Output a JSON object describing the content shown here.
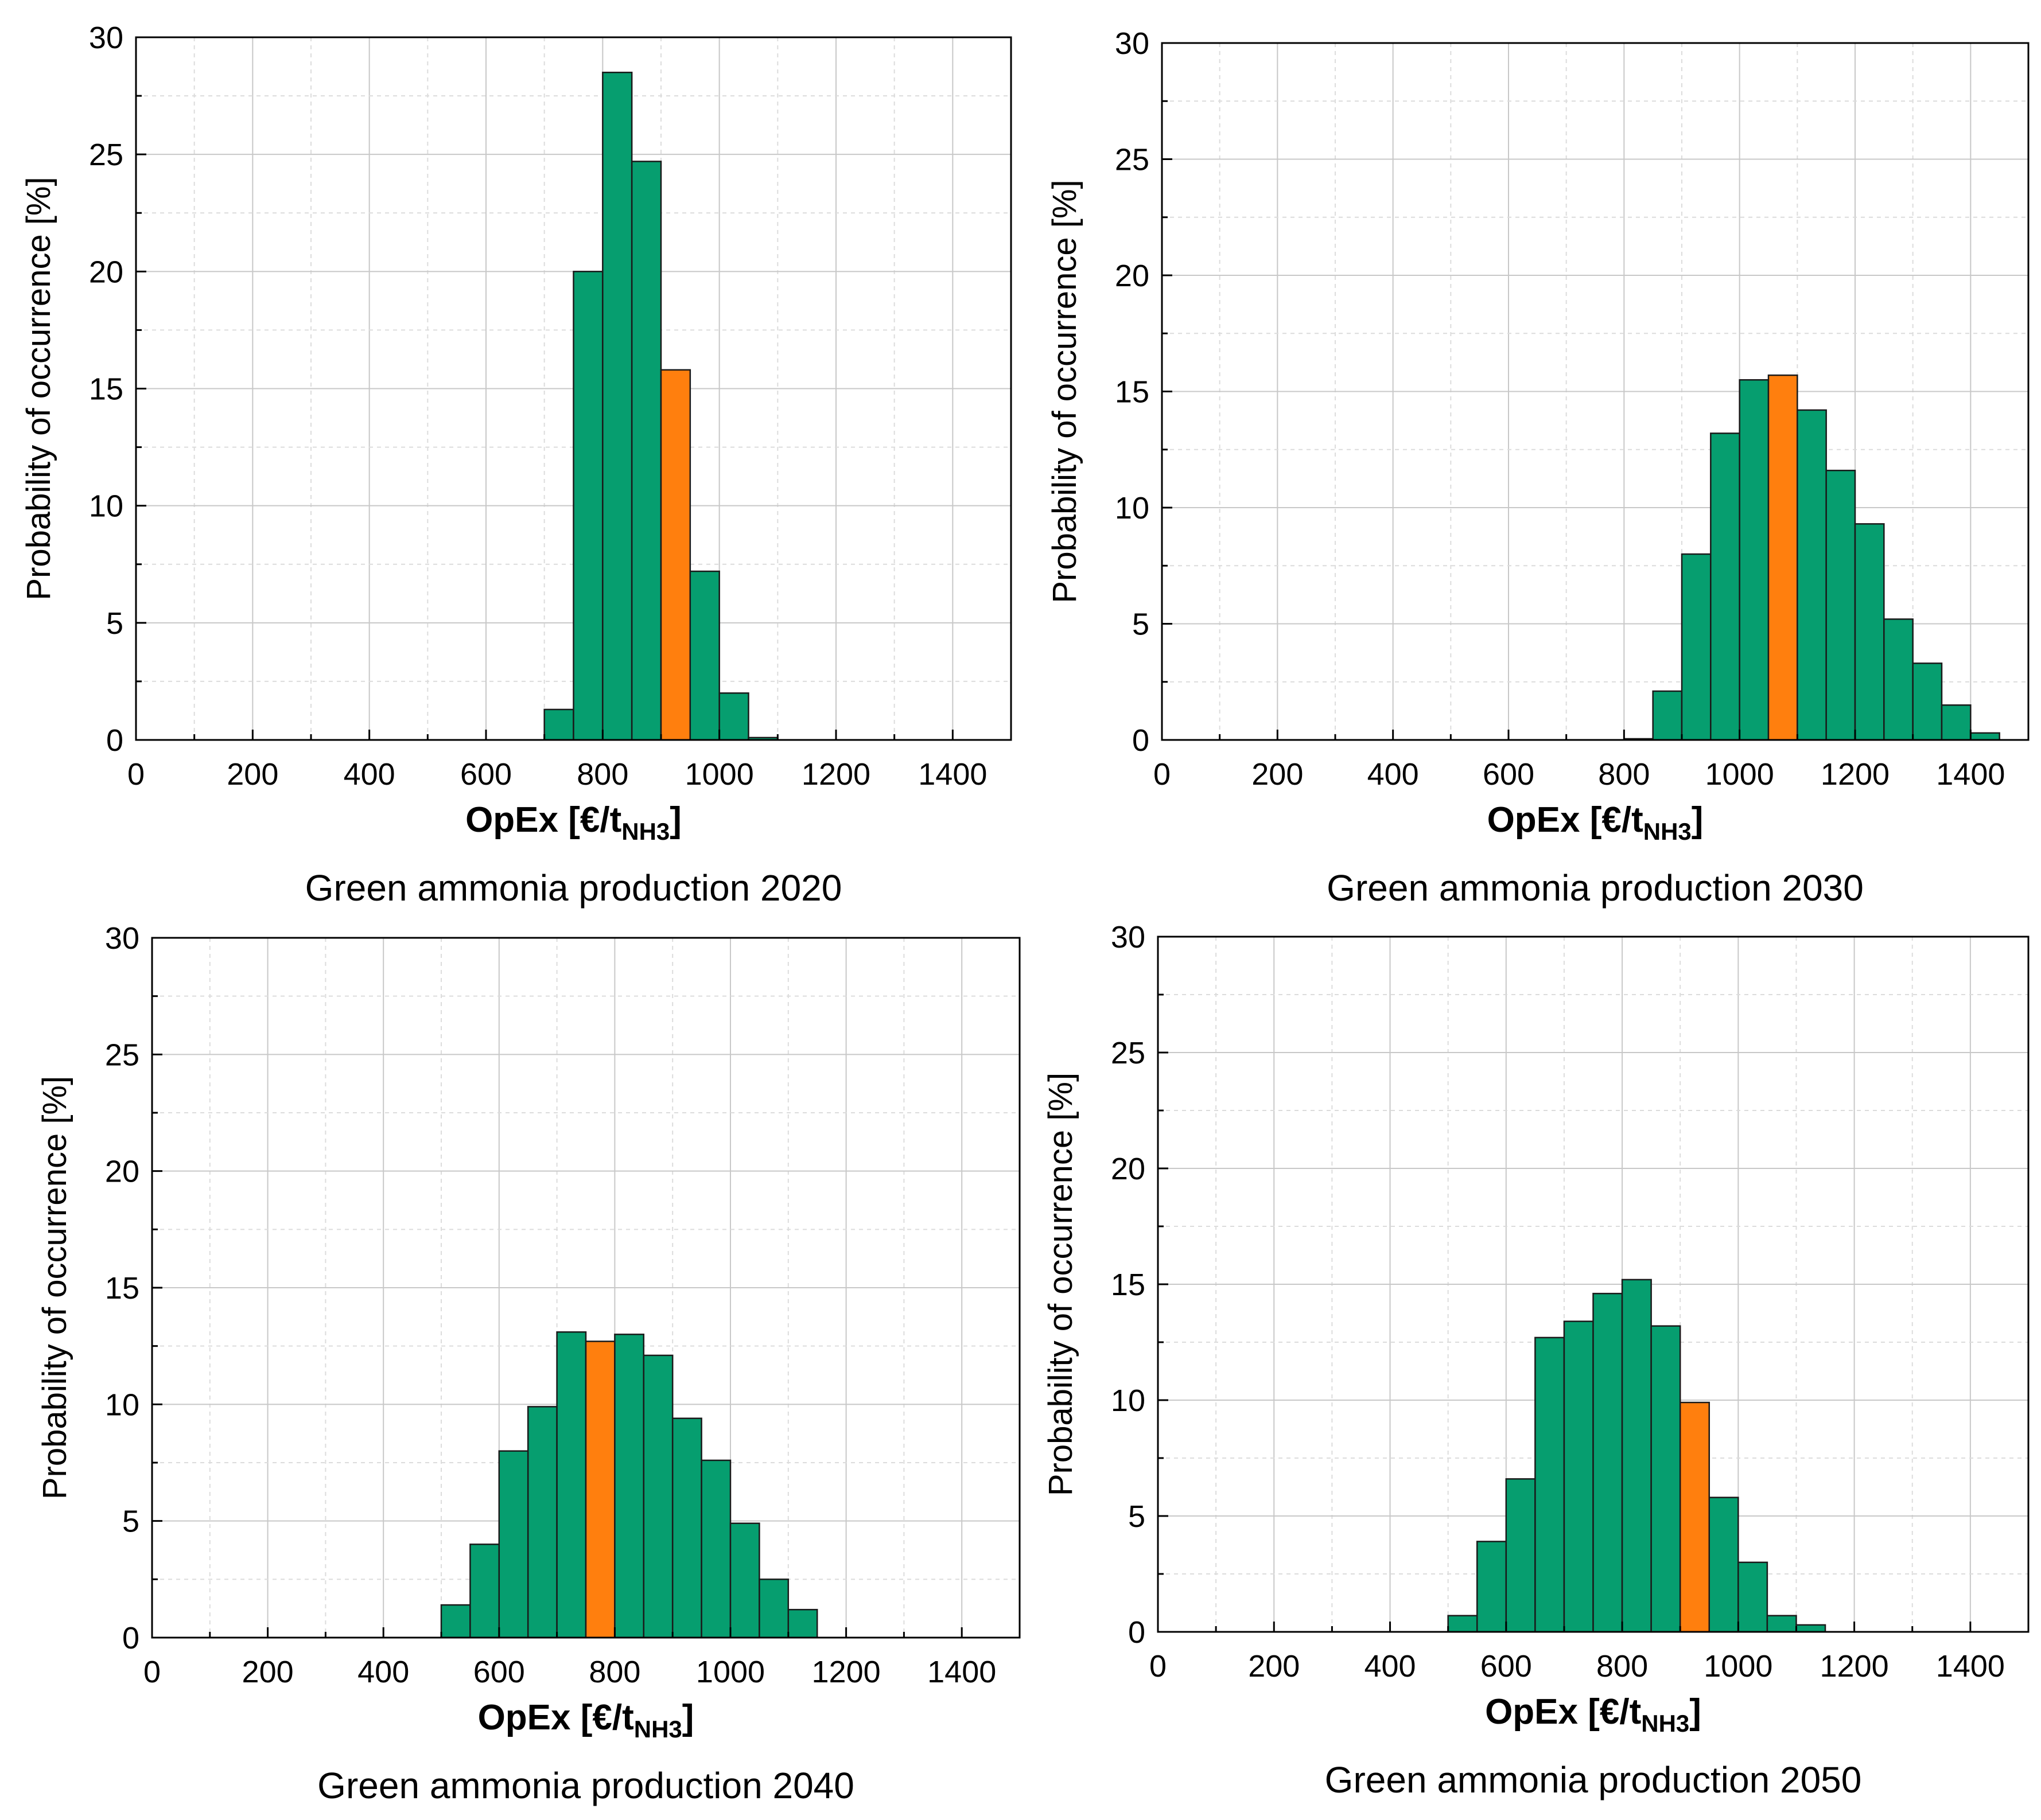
{
  "colors": {
    "normal": "#069e6f",
    "highlight": "#ff7f0e"
  },
  "chart_data": [
    {
      "type": "bar",
      "title": "Green ammonia production 2020",
      "caption_main": "Green ammonia production",
      "caption_year": "2020",
      "xlabel_main": "OpEx [€/t",
      "xlabel_sub": "NH3",
      "xlabel_end": "]",
      "ylabel": "Probability of occurrence [%]",
      "xlim": [
        0,
        1500
      ],
      "ylim": [
        0,
        30
      ],
      "x_ticks": [
        0,
        200,
        400,
        600,
        800,
        1000,
        1200,
        1400
      ],
      "y_ticks": [
        0,
        5,
        10,
        15,
        20,
        25,
        30
      ],
      "bin_width": 50,
      "bin_start": [
        700,
        750,
        800,
        850,
        900,
        950,
        1000,
        1050
      ],
      "values": [
        1.3,
        20.0,
        28.5,
        24.7,
        15.8,
        7.2,
        2.0,
        0.1
      ],
      "highlight_index": 4
    },
    {
      "type": "bar",
      "title": "Green ammonia production 2030",
      "caption_main": "Green ammonia production",
      "caption_year": "2030",
      "xlabel_main": "OpEx [€/t",
      "xlabel_sub": "NH3",
      "xlabel_end": "]",
      "ylabel": "Probability of occurrence [%]",
      "xlim": [
        0,
        1500
      ],
      "ylim": [
        0,
        30
      ],
      "x_ticks": [
        0,
        200,
        400,
        600,
        800,
        1000,
        1200,
        1400
      ],
      "y_ticks": [
        0,
        5,
        10,
        15,
        20,
        25,
        30
      ],
      "bin_width": 50,
      "bin_start": [
        800,
        850,
        900,
        950,
        1000,
        1050,
        1100,
        1150,
        1200,
        1250,
        1300,
        1350,
        1400
      ],
      "values": [
        0.05,
        2.1,
        8.0,
        13.2,
        15.5,
        15.7,
        14.2,
        11.6,
        9.3,
        5.2,
        3.3,
        1.5,
        0.3
      ],
      "highlight_index": 5
    },
    {
      "type": "bar",
      "title": "Green ammonia production 2040",
      "caption_main": "Green ammonia production",
      "caption_year": "2040",
      "xlabel_main": "OpEx [€/t",
      "xlabel_sub": "NH3",
      "xlabel_end": "]",
      "ylabel": "Probability of occurrence [%]",
      "xlim": [
        0,
        1500
      ],
      "ylim": [
        0,
        30
      ],
      "x_ticks": [
        0,
        200,
        400,
        600,
        800,
        1000,
        1200,
        1400
      ],
      "y_ticks": [
        0,
        5,
        10,
        15,
        20,
        25,
        30
      ],
      "bin_width": 50,
      "bin_start": [
        500,
        550,
        600,
        650,
        700,
        750,
        800,
        850,
        900,
        950,
        1000,
        1050,
        1100
      ],
      "values": [
        1.4,
        4.0,
        8.0,
        9.9,
        13.1,
        12.7,
        13.0,
        12.1,
        9.4,
        7.6,
        4.9,
        2.5,
        1.2
      ],
      "highlight_index": 5
    },
    {
      "type": "bar",
      "title": "Green ammonia production 2050",
      "caption_main": "Green ammonia production",
      "caption_year": "2050",
      "xlabel_main": "OpEx [€/t",
      "xlabel_sub": "NH3",
      "xlabel_end": "]",
      "ylabel": "Probability of occurrence [%]",
      "xlim": [
        0,
        1500
      ],
      "ylim": [
        0,
        30
      ],
      "x_ticks": [
        0,
        200,
        400,
        600,
        800,
        1000,
        1200,
        1400
      ],
      "y_ticks": [
        0,
        5,
        10,
        15,
        20,
        25,
        30
      ],
      "bin_width": 50,
      "bin_start": [
        500,
        550,
        600,
        650,
        700,
        750,
        800,
        850,
        900,
        950,
        1000,
        1050,
        1100
      ],
      "values": [
        0.7,
        3.9,
        6.6,
        12.7,
        13.4,
        14.6,
        15.2,
        13.2,
        9.9,
        5.8,
        3.0,
        0.7,
        0.3
      ],
      "highlight_index": 8
    }
  ]
}
